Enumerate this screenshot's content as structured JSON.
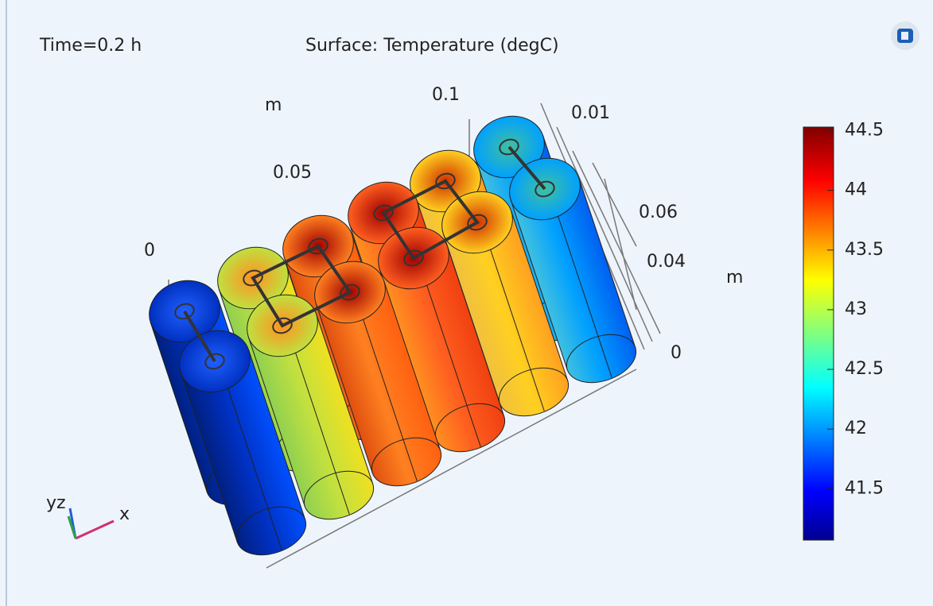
{
  "header": {
    "time": "Time=0.2 h",
    "title": "Surface: Temperature (degC)"
  },
  "axis_texts": [
    "m",
    "0.1",
    "0.01",
    "0.05",
    "0",
    "0.06",
    "0.04",
    "m",
    "0"
  ],
  "triad": {
    "yz": "yz",
    "x": "x"
  },
  "colorbar": {
    "clim": [
      41.07,
      44.53
    ],
    "ticks": [
      44.5,
      44,
      43.5,
      43,
      42.5,
      42,
      41.5
    ]
  }
}
